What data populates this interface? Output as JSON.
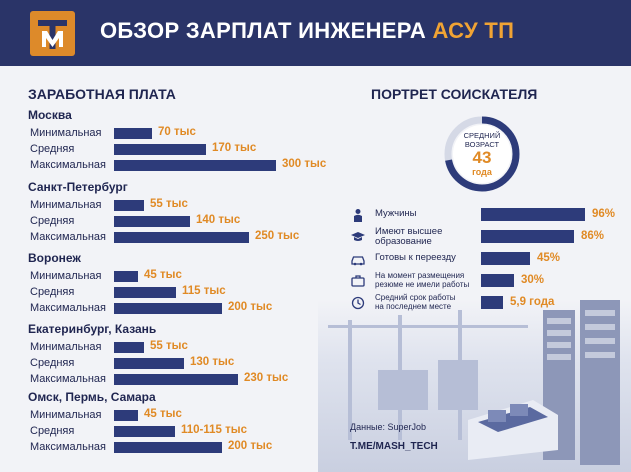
{
  "header": {
    "title_main": "ОБЗОР ЗАРПЛАТ ИНЖЕНЕРА",
    "title_accent": "АСУ ТП",
    "logo_icon": "tm-logo-icon",
    "brand_color": "#2a3468",
    "accent_color": "#f0a334"
  },
  "salary_title": "ЗАРАБОТНАЯ ПЛАТА",
  "portrait_title": "ПОРТРЕТ СОИСКАТЕЛЯ",
  "chart_data": [
    {
      "type": "bar",
      "title": "ЗАРАБОТНАЯ ПЛАТА",
      "orientation": "horizontal",
      "unit": "тыс",
      "groups": [
        {
          "city": "Москва",
          "rows": [
            {
              "label": "Минимальная",
              "value": 70,
              "text": "70 тыс"
            },
            {
              "label": "Средняя",
              "value": 170,
              "text": "170 тыс"
            },
            {
              "label": "Максимальная",
              "value": 300,
              "text": "300 тыс"
            }
          ]
        },
        {
          "city": "Санкт-Петербург",
          "rows": [
            {
              "label": "Минимальная",
              "value": 55,
              "text": "55 тыс"
            },
            {
              "label": "Средняя",
              "value": 140,
              "text": "140 тыс"
            },
            {
              "label": "Максимальная",
              "value": 250,
              "text": "250 тыс"
            }
          ]
        },
        {
          "city": "Воронеж",
          "rows": [
            {
              "label": "Минимальная",
              "value": 45,
              "text": "45 тыс"
            },
            {
              "label": "Средняя",
              "value": 115,
              "text": "115 тыс"
            },
            {
              "label": "Максимальная",
              "value": 200,
              "text": "200 тыс"
            }
          ]
        },
        {
          "city": "Екатеринбург, Казань",
          "rows": [
            {
              "label": "Минимальная",
              "value": 55,
              "text": "55 тыс"
            },
            {
              "label": "Средняя",
              "value": 130,
              "text": "130 тыс"
            },
            {
              "label": "Максимальная",
              "value": 230,
              "text": "230 тыс"
            }
          ]
        },
        {
          "city": "Омск, Пермь, Самара",
          "rows": [
            {
              "label": "Минимальная",
              "value": 45,
              "text": "45 тыс"
            },
            {
              "label": "Средняя",
              "value": 112.5,
              "text": "110-115 тыс"
            },
            {
              "label": "Максимальная",
              "value": 200,
              "text": "200 тыс"
            }
          ]
        }
      ],
      "bar_color": "#2d3b7a",
      "value_color": "#e08a25"
    },
    {
      "type": "pie",
      "subtype": "donut",
      "label": "СРЕДНИЙ ВОЗРАСТ",
      "label_line1": "СРЕДНИЙ",
      "label_line2": "ВОЗРАСТ",
      "value": 43,
      "value_text": "43",
      "unit": "года",
      "fill_fraction": 0.72
    },
    {
      "type": "bar",
      "title": "ПОРТРЕТ СОИСКАТЕЛЯ",
      "orientation": "horizontal",
      "items": [
        {
          "label_lines": [
            "Мужчины"
          ],
          "value": 96,
          "text": "96%",
          "icon": "person-icon"
        },
        {
          "label_lines": [
            "Имеют высшее",
            "образование"
          ],
          "value": 86,
          "text": "86%",
          "icon": "graduation-cap-icon"
        },
        {
          "label_lines": [
            "Готовы к переезду"
          ],
          "value": 45,
          "text": "45%",
          "icon": "car-icon"
        },
        {
          "label_lines": [
            "На момент размещения",
            "резюме не имели работы"
          ],
          "value": 30,
          "text": "30%",
          "icon": "briefcase-icon"
        },
        {
          "label_lines": [
            "Средний срок работы",
            "на последнем месте"
          ],
          "value": 5.9,
          "text": "5,9 года",
          "icon": "clock-icon"
        }
      ]
    }
  ],
  "footer": {
    "source": "Данные: SuperJob",
    "channel": "T.ME/MASH_TECH"
  }
}
